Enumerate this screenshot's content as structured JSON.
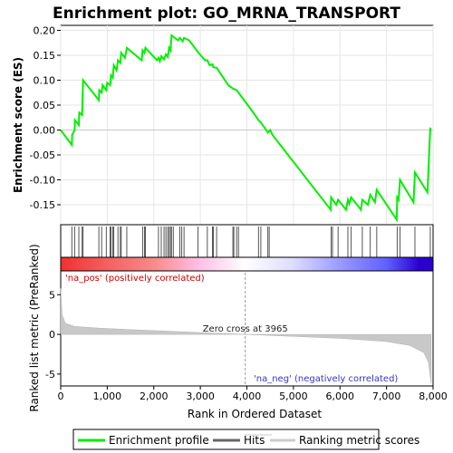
{
  "chart_data": {
    "type": "line",
    "title": "Enrichment plot: GO_MRNA_TRANSPORT",
    "xlabel": "Rank in Ordered Dataset",
    "xlim": [
      0,
      8000
    ],
    "xticks": [
      0,
      1000,
      2000,
      3000,
      4000,
      5000,
      6000,
      7000,
      8000
    ],
    "xtick_labels": [
      "0",
      "1,000",
      "2,000",
      "3,000",
      "4,000",
      "5,000",
      "6,000",
      "7,000",
      "8,000"
    ],
    "es_panel": {
      "ylabel": "Enrichment score (ES)",
      "ylim": [
        -0.19,
        0.21
      ],
      "yticks": [
        -0.15,
        -0.1,
        -0.05,
        0.0,
        0.05,
        0.1,
        0.15,
        0.2
      ],
      "ytick_labels": [
        "-0.15",
        "-0.10",
        "-0.05",
        "0.00",
        "0.05",
        "0.10",
        "0.15",
        "0.20"
      ],
      "color": "#00ee00",
      "points": [
        [
          0,
          0.0
        ],
        [
          240,
          -0.03
        ],
        [
          245,
          -0.01
        ],
        [
          300,
          0.0
        ],
        [
          305,
          0.02
        ],
        [
          390,
          0.01
        ],
        [
          400,
          0.035
        ],
        [
          460,
          0.03
        ],
        [
          480,
          0.1
        ],
        [
          820,
          0.06
        ],
        [
          830,
          0.08
        ],
        [
          880,
          0.075
        ],
        [
          900,
          0.09
        ],
        [
          980,
          0.08
        ],
        [
          1000,
          0.095
        ],
        [
          1060,
          0.09
        ],
        [
          1080,
          0.11
        ],
        [
          1120,
          0.105
        ],
        [
          1140,
          0.13
        ],
        [
          1200,
          0.12
        ],
        [
          1230,
          0.14
        ],
        [
          1280,
          0.135
        ],
        [
          1300,
          0.155
        ],
        [
          1380,
          0.145
        ],
        [
          1420,
          0.165
        ],
        [
          1740,
          0.14
        ],
        [
          1760,
          0.16
        ],
        [
          1800,
          0.155
        ],
        [
          1820,
          0.165
        ],
        [
          2070,
          0.14
        ],
        [
          2100,
          0.145
        ],
        [
          2130,
          0.138
        ],
        [
          2160,
          0.148
        ],
        [
          2220,
          0.142
        ],
        [
          2260,
          0.152
        ],
        [
          2300,
          0.147
        ],
        [
          2330,
          0.165
        ],
        [
          2360,
          0.16
        ],
        [
          2380,
          0.19
        ],
        [
          2520,
          0.18
        ],
        [
          2560,
          0.185
        ],
        [
          2620,
          0.178
        ],
        [
          2650,
          0.185
        ],
        [
          2760,
          0.18
        ],
        [
          2960,
          0.155
        ],
        [
          3100,
          0.14
        ],
        [
          3150,
          0.14
        ],
        [
          3200,
          0.13
        ],
        [
          3260,
          0.132
        ],
        [
          3280,
          0.126
        ],
        [
          3350,
          0.125
        ],
        [
          3600,
          0.09
        ],
        [
          3700,
          0.083
        ],
        [
          3780,
          0.08
        ],
        [
          3900,
          0.065
        ],
        [
          4100,
          0.04
        ],
        [
          4250,
          0.02
        ],
        [
          4300,
          0.015
        ],
        [
          4380,
          0.005
        ],
        [
          4450,
          -0.005
        ],
        [
          4500,
          0.0
        ],
        [
          4550,
          -0.01
        ],
        [
          5800,
          -0.16
        ],
        [
          5810,
          -0.135
        ],
        [
          5920,
          -0.15
        ],
        [
          5960,
          -0.14
        ],
        [
          6130,
          -0.16
        ],
        [
          6170,
          -0.14
        ],
        [
          6200,
          -0.148
        ],
        [
          6240,
          -0.135
        ],
        [
          6450,
          -0.16
        ],
        [
          6480,
          -0.14
        ],
        [
          6600,
          -0.15
        ],
        [
          6650,
          -0.13
        ],
        [
          6750,
          -0.145
        ],
        [
          6790,
          -0.12
        ],
        [
          7220,
          -0.18
        ],
        [
          7230,
          -0.135
        ],
        [
          7260,
          -0.14
        ],
        [
          7290,
          -0.1
        ],
        [
          7580,
          -0.145
        ],
        [
          7610,
          -0.085
        ],
        [
          7880,
          -0.125
        ],
        [
          7940,
          0.005
        ]
      ]
    },
    "hits_panel": {
      "label": "Hits",
      "hit_ranks": [
        240,
        300,
        390,
        460,
        480,
        820,
        880,
        980,
        1060,
        1080,
        1120,
        1140,
        1230,
        1280,
        1300,
        1420,
        1760,
        1800,
        1820,
        2100,
        2160,
        2220,
        2260,
        2300,
        2330,
        2360,
        2380,
        2420,
        2560,
        2600,
        2650,
        2950,
        3150,
        3260,
        3280,
        3350,
        3700,
        3720,
        3780,
        3820,
        4250,
        4300,
        4450,
        4480,
        5810,
        5840,
        5960,
        6170,
        6240,
        6480,
        6650,
        6790,
        7230,
        7290,
        7610,
        7940
      ]
    },
    "ranking_panel": {
      "ylabel": "Ranked list metric (PreRanked)",
      "ylim": [
        -6.5,
        8
      ],
      "yticks": [
        -5,
        0,
        5
      ],
      "ytick_labels": [
        "-5",
        "0",
        "5"
      ],
      "profile": [
        [
          0,
          5.8
        ],
        [
          30,
          2.5
        ],
        [
          100,
          1.4
        ],
        [
          300,
          1.0
        ],
        [
          800,
          0.8
        ],
        [
          1500,
          0.6
        ],
        [
          2500,
          0.35
        ],
        [
          3965,
          0.0
        ],
        [
          5000,
          -0.25
        ],
        [
          6000,
          -0.5
        ],
        [
          7000,
          -0.9
        ],
        [
          7500,
          -1.4
        ],
        [
          7800,
          -2.3
        ],
        [
          7900,
          -3.5
        ],
        [
          7960,
          -6.2
        ]
      ],
      "zero_cross_label": "Zero cross at 3965",
      "zero_cross_rank": 3965,
      "pos_label": "'na_pos' (positively correlated)",
      "neg_label": "'na_neg' (negatively correlated)"
    },
    "colorbar": {
      "stops": [
        {
          "rank": 0,
          "color": "#f03030"
        },
        {
          "rank": 1000,
          "color": "#f56060"
        },
        {
          "rank": 2000,
          "color": "#f88a8a"
        },
        {
          "rank": 3000,
          "color": "#ffc0e8"
        },
        {
          "rank": 3965,
          "color": "#ffffff"
        },
        {
          "rank": 5000,
          "color": "#dcdcff"
        },
        {
          "rank": 6000,
          "color": "#9a9aff"
        },
        {
          "rank": 7000,
          "color": "#6060ff"
        },
        {
          "rank": 7700,
          "color": "#2a00d0"
        },
        {
          "rank": 8000,
          "color": "#2a00d0"
        }
      ]
    },
    "legend": {
      "entries": [
        {
          "label": "Enrichment profile",
          "color": "#00ee00"
        },
        {
          "label": "Hits",
          "color": "#666666"
        },
        {
          "label": "Ranking metric scores",
          "color": "#cccccc"
        }
      ]
    }
  }
}
